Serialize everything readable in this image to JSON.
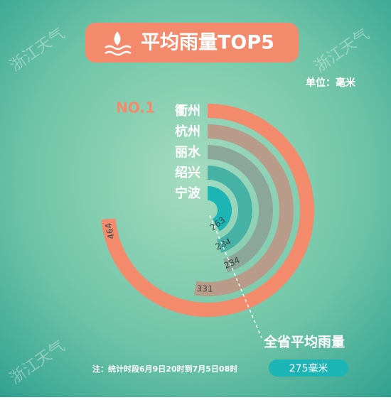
{
  "chart_data": {
    "type": "radial_bar",
    "title": "平均雨量TOP5",
    "unit": "单位：毫米",
    "rank_label": "NO.1",
    "categories": [
      "衢州",
      "杭州",
      "丽水",
      "绍兴",
      "宁波"
    ],
    "values": [
      464,
      331,
      284,
      284,
      263
    ],
    "colors": [
      "#f48a6c",
      "#b89b88",
      "#8ba79b",
      "#46b2a6",
      "#1db4b6"
    ],
    "average": {
      "value": 275,
      "label": "275毫米"
    },
    "average_title": "全省平均雨量",
    "note": "注：统计时段6月9日20时到7月5日08时",
    "watermark": "浙江天气"
  }
}
